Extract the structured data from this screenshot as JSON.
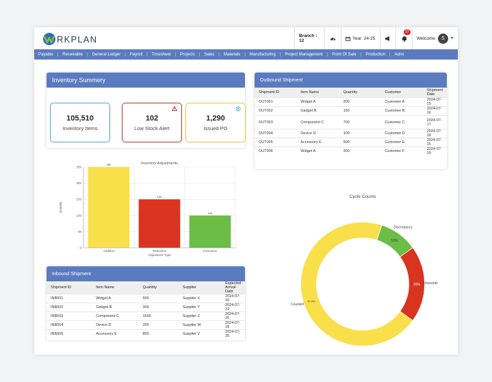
{
  "app": {
    "logo_text": "RKPLAN"
  },
  "topbar": {
    "branch": "Branch : 12",
    "year": "Year: 24-25",
    "notif_count": "27",
    "welcome": "Welcome",
    "avatar_letter": "S"
  },
  "nav": [
    "Payable",
    "Receivable",
    "General Ledger",
    "Payroll",
    "Timesheet",
    "Projects",
    "Sales",
    "Materials",
    "Manufacturing",
    "Project Management",
    "Point Of Sale",
    "Production",
    "Admi"
  ],
  "inventory": {
    "title": "Inventory Summery",
    "stats": [
      {
        "value": "105,510",
        "label": "Inventory Items",
        "color": "#4aa3d8"
      },
      {
        "value": "102",
        "label": "Low Stock Alert",
        "color": "#b03030"
      },
      {
        "value": "1,290",
        "label": "Issued PO",
        "color": "#e4c33a"
      }
    ]
  },
  "outbound": {
    "title": "Outbound Shipment",
    "headers": [
      "Shipment ID",
      "Item Name",
      "Quantity",
      "Customer",
      "Shipment Date"
    ],
    "rows": [
      [
        "OUT001",
        "Widget A",
        "200",
        "Customer A",
        "2024-07-15"
      ],
      [
        "OUT002",
        "Gadget B",
        "150",
        "Customer B",
        "2024-07-16"
      ],
      [
        "OUT003",
        "Component C",
        "700",
        "Customer C",
        "2024-07-17"
      ],
      [
        "OUT004",
        "Device D",
        "100",
        "Customer D",
        "2024-07-18"
      ],
      [
        "OUT005",
        "Accessory E",
        "500",
        "Customer E",
        "2024-07-15"
      ],
      [
        "OUT006",
        "Widget A",
        "300",
        "Customer F",
        "2024-07-19"
      ]
    ]
  },
  "inbound": {
    "title": "Inbound Shipment",
    "headers": [
      "Shipment ID",
      "Item Name",
      "Quantity",
      "Supplier",
      "Expected Arrival Date"
    ],
    "rows": [
      [
        "INB001",
        "Widget A",
        "500",
        "Supplier X",
        "2024-07-20"
      ],
      [
        "INB002",
        "Gadget B",
        "300",
        "Supplier Y",
        "2024-07-22"
      ],
      [
        "INB003",
        "Component C",
        "1500",
        "Supplier Z",
        "2024-07-25"
      ],
      [
        "INB004",
        "Device D",
        "200",
        "Supplier W",
        "2024-07-18"
      ],
      [
        "INB005",
        "Accessory E",
        "800",
        "Supplier V",
        "2024-07-20"
      ]
    ]
  },
  "chart_data": [
    {
      "type": "bar",
      "title": "Inventory Adjustments",
      "xlabel": "Adjustment Type",
      "ylabel": "Quantity",
      "categories": [
        "Addition",
        "Reduction",
        "Correction"
      ],
      "values": [
        250,
        150,
        100
      ],
      "colors": [
        "#f9df4a",
        "#d9341f",
        "#6cbd45"
      ],
      "ylim": [
        0,
        250
      ],
      "yticks": [
        0,
        50,
        100,
        150,
        200,
        250
      ],
      "grid": true
    },
    {
      "type": "pie",
      "title": "Cycle Counts",
      "categories": [
        "Counted",
        "Discrepancy",
        "Uncounted"
      ],
      "values": [
        70,
        10,
        20
      ],
      "value_labels": [
        "70.0%",
        "10%",
        "20%"
      ],
      "colors": [
        "#f9df4a",
        "#6cbd45",
        "#d9341f"
      ]
    }
  ]
}
